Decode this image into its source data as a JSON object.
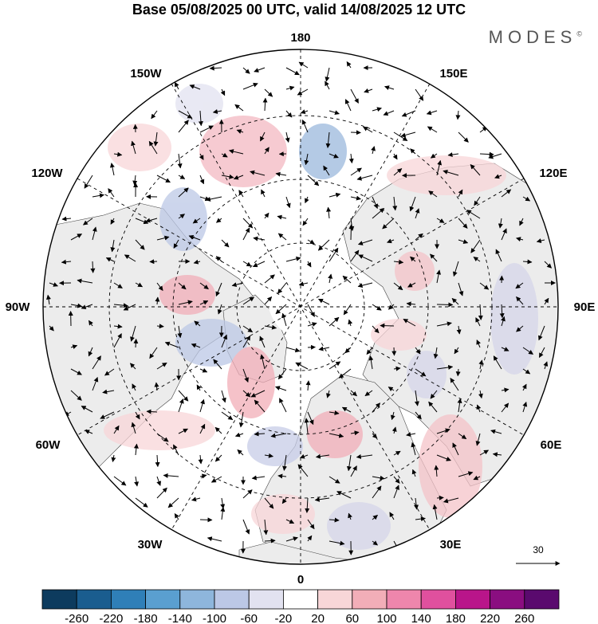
{
  "title": "Base 05/08/2025 00 UTC, valid 14/08/2025 12 UTC",
  "brand": "MODES",
  "brand_mark": "©",
  "longitude_labels": {
    "top": "180",
    "bottom": "0",
    "left": "90W",
    "right": "90E",
    "upper_left_1": "150W",
    "upper_left_2": "120W",
    "upper_right_1": "150E",
    "upper_right_2": "120E",
    "lower_left_1": "60W",
    "lower_left_2": "30W",
    "lower_right_1": "60E",
    "lower_right_2": "30E"
  },
  "reference_vector": {
    "value": "30"
  },
  "colorbar": {
    "labels": [
      "-260",
      "-220",
      "-180",
      "-140",
      "-100",
      "-60",
      "-20",
      "20",
      "60",
      "100",
      "140",
      "180",
      "220",
      "260"
    ],
    "colors": [
      "#0d3b5e",
      "#1a5d8f",
      "#2f7fb8",
      "#5a9fd0",
      "#8eb6dc",
      "#bcc8e6",
      "#e2e2f0",
      "#ffffff",
      "#f8d6d8",
      "#f2aeb8",
      "#ee86ac",
      "#e0509e",
      "#b9158a",
      "#8a0e80",
      "#5a0a6e"
    ]
  },
  "colors": {
    "land": "#ececec",
    "ocean": "#ffffff",
    "grid": "#000000"
  }
}
